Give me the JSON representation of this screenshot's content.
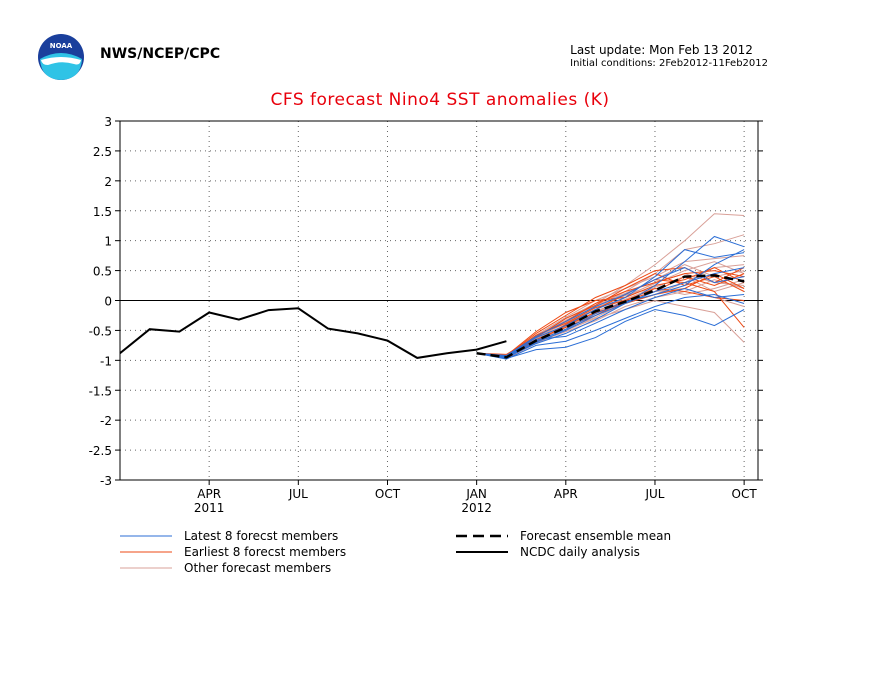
{
  "header": {
    "org": "NWS/NCEP/CPC",
    "last_update": "Last update: Mon Feb 13 2012",
    "initial_conditions": "Initial conditions: 2Feb2012-11Feb2012",
    "logo_text": "NOAA"
  },
  "chart_data": {
    "type": "line",
    "title": "CFS forecast Nino4 SST anomalies (K)",
    "xlabel": "",
    "ylabel": "",
    "ylim": [
      -3,
      3
    ],
    "yticks": [
      -3,
      -2.5,
      -2,
      -1.5,
      -1,
      -0.5,
      0,
      0.5,
      1,
      1.5,
      2,
      2.5,
      3
    ],
    "xlim": [
      "2011-01",
      "2012-10-15"
    ],
    "xticks": [
      {
        "x": "2011-04",
        "label": "APR",
        "year": "2011"
      },
      {
        "x": "2011-07",
        "label": "JUL",
        "year": ""
      },
      {
        "x": "2011-10",
        "label": "OCT",
        "year": ""
      },
      {
        "x": "2012-01",
        "label": "JAN",
        "year": "2012"
      },
      {
        "x": "2012-04",
        "label": "APR",
        "year": ""
      },
      {
        "x": "2012-07",
        "label": "JUL",
        "year": ""
      },
      {
        "x": "2012-10",
        "label": "OCT",
        "year": ""
      }
    ],
    "grid": true,
    "zero_line": true,
    "analysis": {
      "name": "NCDC daily analysis",
      "color": "#000000",
      "x": [
        "2011-01",
        "2011-02",
        "2011-03",
        "2011-04",
        "2011-05",
        "2011-06",
        "2011-07",
        "2011-08",
        "2011-09",
        "2011-10",
        "2011-11",
        "2011-12",
        "2012-01",
        "2012-02"
      ],
      "y": [
        -0.88,
        -0.48,
        -0.52,
        -0.2,
        -0.32,
        -0.16,
        -0.13,
        -0.47,
        -0.55,
        -0.67,
        -0.96,
        -0.88,
        -0.82,
        -0.68
      ]
    },
    "ensemble_mean": {
      "name": "Forecast ensemble mean",
      "color": "#000000",
      "x": [
        "2012-01",
        "2012-02",
        "2012-03",
        "2012-04",
        "2012-05",
        "2012-06",
        "2012-07",
        "2012-08",
        "2012-09",
        "2012-10"
      ],
      "y": [
        -0.88,
        -0.95,
        -0.67,
        -0.45,
        -0.18,
        -0.02,
        0.17,
        0.4,
        0.42,
        0.32
      ]
    },
    "latest_members": {
      "name": "Latest 8 forecst members",
      "color": "#2b6ed6",
      "x": [
        "2012-01",
        "2012-02",
        "2012-03",
        "2012-04",
        "2012-05",
        "2012-06",
        "2012-07",
        "2012-08",
        "2012-09",
        "2012-10"
      ],
      "series": [
        {
          "y": [
            -0.88,
            -0.97,
            -0.82,
            -0.78,
            -0.62,
            -0.35,
            -0.15,
            -0.25,
            -0.42,
            -0.15
          ]
        },
        {
          "y": [
            -0.88,
            -0.95,
            -0.72,
            -0.55,
            -0.32,
            -0.05,
            0.25,
            0.65,
            1.07,
            0.9
          ]
        },
        {
          "y": [
            -0.88,
            -0.93,
            -0.62,
            -0.42,
            -0.15,
            0.05,
            0.4,
            0.85,
            0.72,
            0.8
          ]
        },
        {
          "y": [
            -0.88,
            -0.96,
            -0.7,
            -0.5,
            -0.25,
            -0.05,
            0.15,
            0.3,
            0.45,
            0.55
          ]
        },
        {
          "y": [
            -0.88,
            -0.94,
            -0.65,
            -0.6,
            -0.38,
            -0.15,
            0.05,
            0.2,
            0.05,
            0.1
          ]
        },
        {
          "y": [
            -0.88,
            -0.98,
            -0.75,
            -0.68,
            -0.5,
            -0.3,
            -0.1,
            0.05,
            0.1,
            -0.05
          ]
        },
        {
          "y": [
            -0.88,
            -0.92,
            -0.6,
            -0.35,
            -0.1,
            0.1,
            0.35,
            0.55,
            0.3,
            0.4
          ]
        },
        {
          "y": [
            -0.88,
            -0.95,
            -0.68,
            -0.48,
            -0.22,
            -0.02,
            0.1,
            0.25,
            0.6,
            0.85
          ]
        }
      ]
    },
    "earliest_members": {
      "name": "Earliest 8 forecst members",
      "color": "#ee4a14",
      "x": [
        "2012-01",
        "2012-02",
        "2012-03",
        "2012-04",
        "2012-05",
        "2012-06",
        "2012-07",
        "2012-08",
        "2012-09",
        "2012-10"
      ],
      "series": [
        {
          "y": [
            -0.88,
            -0.93,
            -0.55,
            -0.25,
            0.05,
            0.25,
            0.5,
            0.55,
            0.3,
            0.55
          ]
        },
        {
          "y": [
            -0.88,
            -0.96,
            -0.7,
            -0.4,
            -0.15,
            0.1,
            0.35,
            0.3,
            0.15,
            -0.45
          ]
        },
        {
          "y": [
            -0.88,
            -0.9,
            -0.6,
            -0.35,
            -0.05,
            0.15,
            0.3,
            0.45,
            0.5,
            0.4
          ]
        },
        {
          "y": [
            -0.88,
            -0.97,
            -0.65,
            -0.45,
            -0.25,
            0.0,
            0.2,
            0.15,
            0.05,
            0.0
          ]
        },
        {
          "y": [
            -0.88,
            -0.92,
            -0.52,
            -0.2,
            0.0,
            0.05,
            0.25,
            0.35,
            0.55,
            0.3
          ]
        },
        {
          "y": [
            -0.88,
            -0.95,
            -0.62,
            -0.3,
            -0.08,
            0.2,
            0.45,
            0.25,
            0.4,
            0.15
          ]
        },
        {
          "y": [
            -0.88,
            -0.94,
            -0.58,
            -0.38,
            -0.12,
            0.0,
            0.15,
            0.4,
            0.25,
            0.45
          ]
        },
        {
          "y": [
            -0.88,
            -0.96,
            -0.68,
            -0.42,
            -0.2,
            -0.05,
            0.1,
            0.2,
            0.45,
            0.2
          ]
        }
      ]
    },
    "other_members": {
      "name": "Other forecast members",
      "color": "#d9a098",
      "x": [
        "2012-01",
        "2012-02",
        "2012-03",
        "2012-04",
        "2012-05",
        "2012-06",
        "2012-07",
        "2012-08",
        "2012-09",
        "2012-10"
      ],
      "series": [
        {
          "y": [
            -0.88,
            -0.95,
            -0.6,
            -0.3,
            -0.05,
            0.25,
            0.6,
            1.0,
            1.45,
            1.42
          ]
        },
        {
          "y": [
            -0.88,
            -0.93,
            -0.65,
            -0.4,
            -0.1,
            0.15,
            0.45,
            0.85,
            0.95,
            1.1
          ]
        },
        {
          "y": [
            -0.88,
            -0.97,
            -0.72,
            -0.5,
            -0.3,
            -0.15,
            0.0,
            -0.1,
            -0.2,
            -0.7
          ]
        },
        {
          "y": [
            -0.88,
            -0.94,
            -0.58,
            -0.28,
            0.0,
            0.2,
            0.4,
            0.65,
            0.7,
            0.75
          ]
        },
        {
          "y": [
            -0.88,
            -0.96,
            -0.7,
            -0.45,
            -0.2,
            0.05,
            0.3,
            0.45,
            0.3,
            0.25
          ]
        },
        {
          "y": [
            -0.88,
            -0.92,
            -0.62,
            -0.38,
            -0.15,
            0.1,
            0.2,
            0.1,
            0.2,
            0.35
          ]
        },
        {
          "y": [
            -0.88,
            -0.95,
            -0.66,
            -0.48,
            -0.28,
            -0.05,
            0.1,
            0.3,
            0.55,
            0.6
          ]
        },
        {
          "y": [
            -0.88,
            -0.93,
            -0.6,
            -0.33,
            -0.08,
            0.12,
            0.35,
            0.6,
            0.4,
            0.5
          ]
        },
        {
          "y": [
            -0.88,
            -0.96,
            -0.68,
            -0.42,
            -0.22,
            0.0,
            0.15,
            0.2,
            0.05,
            -0.1
          ]
        },
        {
          "y": [
            -0.88,
            -0.94,
            -0.63,
            -0.36,
            -0.12,
            0.08,
            0.28,
            0.5,
            0.65,
            0.45
          ]
        },
        {
          "y": [
            -0.88,
            -0.95,
            -0.64,
            -0.44,
            -0.18,
            0.02,
            0.22,
            0.4,
            0.15,
            0.3
          ]
        },
        {
          "y": [
            -0.88,
            -0.97,
            -0.7,
            -0.52,
            -0.34,
            -0.1,
            0.05,
            0.15,
            0.35,
            0.2
          ]
        }
      ]
    },
    "legend": {
      "placement": "bottom",
      "entries": [
        {
          "label": "Latest 8 forecst members",
          "color": "#2b6ed6",
          "style": "thin"
        },
        {
          "label": "Earliest 8 forecst members",
          "color": "#ee4a14",
          "style": "thin"
        },
        {
          "label": "Other forecast members",
          "color": "#d9a098",
          "style": "thin"
        },
        {
          "label": "Forecast ensemble mean",
          "color": "#000000",
          "style": "dashed"
        },
        {
          "label": "NCDC daily analysis",
          "color": "#000000",
          "style": "solid"
        }
      ]
    }
  }
}
